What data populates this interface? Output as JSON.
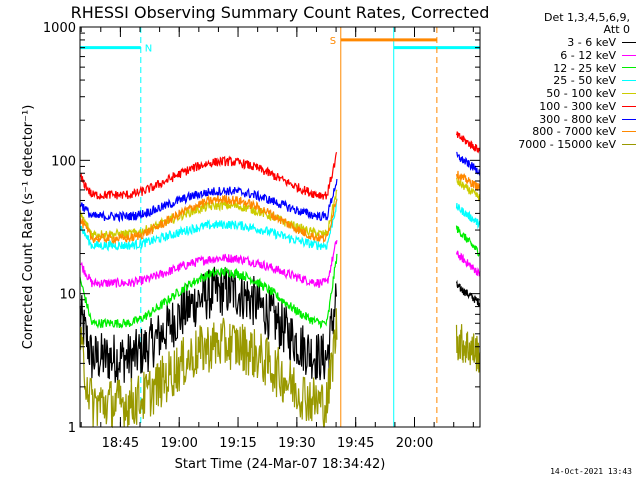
{
  "chart_data": {
    "type": "line",
    "title": "RHESSI Observing Summary Count Rates, Corrected",
    "xlabel": "Start Time (24-Mar-07 18:34:42)",
    "ylabel": "Corrected Count Rate (s⁻¹ detector⁻¹)",
    "yscale": "log",
    "ylim": [
      1,
      1000
    ],
    "xlim_minutes_after_18_34_42": [
      0,
      102
    ],
    "y_ticks": [
      {
        "value": 1,
        "label": "1"
      },
      {
        "value": 10,
        "label": "10"
      },
      {
        "value": 100,
        "label": "100"
      },
      {
        "value": 1000,
        "label": "1000"
      }
    ],
    "x_ticks": [
      {
        "minutes": 10.3,
        "label": "18:45"
      },
      {
        "minutes": 25.3,
        "label": "19:00"
      },
      {
        "minutes": 40.3,
        "label": "19:15"
      },
      {
        "minutes": 55.3,
        "label": "19:30"
      },
      {
        "minutes": 70.3,
        "label": "19:45"
      },
      {
        "minutes": 85.3,
        "label": "20:00"
      }
    ],
    "segments": [
      [
        0,
        65.5
      ],
      [
        96,
        102
      ]
    ],
    "series": [
      {
        "name": "3 - 6 keV",
        "color": "#000000",
        "edge": 7,
        "trough": 3.3,
        "peak": 10.5,
        "post": 11.5,
        "post_end": 8.5
      },
      {
        "name": "6 - 12 keV",
        "color": "#ff00ff",
        "edge": 17,
        "trough": 12,
        "peak": 18.5,
        "post": 20,
        "post_end": 14
      },
      {
        "name": "12 - 25 keV",
        "color": "#00ee00",
        "edge": 13,
        "trough": 6,
        "peak": 14.5,
        "post": 31,
        "post_end": 20
      },
      {
        "name": "25 - 50 keV",
        "color": "#00ffff",
        "edge": 32,
        "trough": 23,
        "peak": 33,
        "post": 45,
        "post_end": 33
      },
      {
        "name": "50 - 100 keV",
        "color": "#cccc00",
        "edge": 40,
        "trough": 28,
        "peak": 46,
        "post": 70,
        "post_end": 52
      },
      {
        "name": "100 - 300 keV",
        "color": "#ff0000",
        "edge": 75,
        "trough": 55,
        "peak": 98,
        "post": 155,
        "post_end": 118
      },
      {
        "name": "300 - 800 keV",
        "color": "#0000ff",
        "edge": 48,
        "trough": 38,
        "peak": 59,
        "post": 108,
        "post_end": 82
      },
      {
        "name": "800 - 7000 keV",
        "color": "#ff8800",
        "edge": 36,
        "trough": 26,
        "peak": 51,
        "post": 79,
        "post_end": 62
      },
      {
        "name": "7000 - 15000 keV",
        "color": "#999900",
        "edge": 4,
        "trough": 1.5,
        "peak": 4.2,
        "post": 4.5,
        "post_end": 3.5
      }
    ],
    "flags": [
      {
        "label": "N",
        "color": "#00ffff",
        "level": 700,
        "start": 0,
        "end": 15.5,
        "start_style": "solid",
        "end_style": "dashed"
      },
      {
        "label": "",
        "color": "#00ffff",
        "level": 700,
        "start": 80,
        "end": 102,
        "start_style": "solid",
        "end_style": "dashed"
      },
      {
        "label": "S",
        "color": "#ff8800",
        "level": 800,
        "start": 66.5,
        "end": 91,
        "start_style": "solid",
        "end_style": "dashed"
      }
    ]
  },
  "legend": {
    "header_line1": "Det 1,3,4,5,6,9,",
    "header_line2": "Att 0"
  },
  "timestamp": "14-Oct-2021 13:43"
}
